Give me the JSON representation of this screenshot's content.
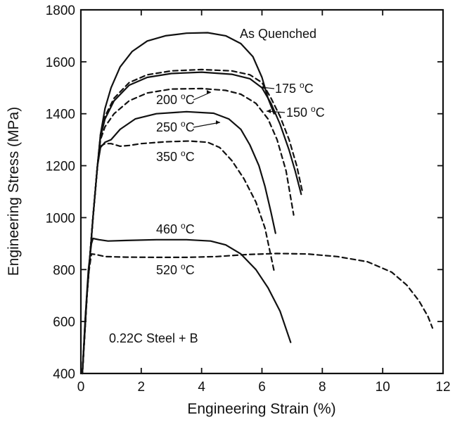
{
  "chart_data": {
    "type": "line",
    "xlabel": "Engineering Strain (%)",
    "ylabel": "Engineering Stress (MPa)",
    "xlim": [
      0,
      12
    ],
    "ylim": [
      400,
      1800
    ],
    "xticks": [
      0,
      2,
      4,
      6,
      8,
      10,
      12
    ],
    "yticks": [
      400,
      600,
      800,
      1000,
      1200,
      1400,
      1600,
      1800
    ],
    "grid": false,
    "legend": "none",
    "annotation": "0.22C Steel + B",
    "series": [
      {
        "name": "As Quenched",
        "label": "As Quenched",
        "dashed": false,
        "points": [
          [
            0.05,
            400
          ],
          [
            0.2,
            700
          ],
          [
            0.4,
            1000
          ],
          [
            0.55,
            1200
          ],
          [
            0.65,
            1320
          ],
          [
            0.8,
            1420
          ],
          [
            1.0,
            1500
          ],
          [
            1.3,
            1580
          ],
          [
            1.7,
            1640
          ],
          [
            2.2,
            1680
          ],
          [
            2.8,
            1700
          ],
          [
            3.5,
            1710
          ],
          [
            4.2,
            1712
          ],
          [
            4.8,
            1700
          ],
          [
            5.3,
            1670
          ],
          [
            5.7,
            1620
          ],
          [
            6.0,
            1540
          ],
          [
            6.2,
            1460
          ],
          [
            6.4,
            1400
          ]
        ]
      },
      {
        "name": "175 °C",
        "label": "175",
        "unit": "oC",
        "dashed": true,
        "points": [
          [
            0.05,
            400
          ],
          [
            0.2,
            700
          ],
          [
            0.4,
            1000
          ],
          [
            0.55,
            1200
          ],
          [
            0.65,
            1320
          ],
          [
            0.8,
            1390
          ],
          [
            1.1,
            1460
          ],
          [
            1.6,
            1520
          ],
          [
            2.2,
            1550
          ],
          [
            3.0,
            1565
          ],
          [
            4.0,
            1570
          ],
          [
            5.0,
            1565
          ],
          [
            5.6,
            1550
          ],
          [
            6.0,
            1520
          ],
          [
            6.3,
            1460
          ],
          [
            6.6,
            1390
          ],
          [
            6.9,
            1300
          ],
          [
            7.15,
            1200
          ],
          [
            7.35,
            1095
          ]
        ]
      },
      {
        "name": "150 °C",
        "label": "150",
        "unit": "oC",
        "dashed": false,
        "points": [
          [
            0.05,
            400
          ],
          [
            0.2,
            700
          ],
          [
            0.4,
            1000
          ],
          [
            0.55,
            1200
          ],
          [
            0.65,
            1310
          ],
          [
            0.8,
            1380
          ],
          [
            1.1,
            1450
          ],
          [
            1.6,
            1510
          ],
          [
            2.2,
            1540
          ],
          [
            3.0,
            1555
          ],
          [
            4.0,
            1560
          ],
          [
            5.0,
            1552
          ],
          [
            5.6,
            1535
          ],
          [
            6.0,
            1500
          ],
          [
            6.3,
            1440
          ],
          [
            6.6,
            1360
          ],
          [
            6.9,
            1260
          ],
          [
            7.1,
            1180
          ],
          [
            7.3,
            1090
          ]
        ]
      },
      {
        "name": "200 °C",
        "label": "200",
        "unit": "oC",
        "dashed": true,
        "points": [
          [
            0.05,
            400
          ],
          [
            0.2,
            700
          ],
          [
            0.4,
            1000
          ],
          [
            0.55,
            1200
          ],
          [
            0.65,
            1300
          ],
          [
            0.8,
            1350
          ],
          [
            1.1,
            1400
          ],
          [
            1.6,
            1450
          ],
          [
            2.2,
            1480
          ],
          [
            3.0,
            1495
          ],
          [
            4.0,
            1497
          ],
          [
            4.8,
            1490
          ],
          [
            5.3,
            1475
          ],
          [
            5.8,
            1440
          ],
          [
            6.2,
            1380
          ],
          [
            6.5,
            1300
          ],
          [
            6.8,
            1180
          ],
          [
            7.05,
            1010
          ]
        ]
      },
      {
        "name": "250 °C",
        "label": "250",
        "unit": "oC",
        "dashed": false,
        "points": [
          [
            0.05,
            400
          ],
          [
            0.2,
            700
          ],
          [
            0.4,
            1000
          ],
          [
            0.55,
            1200
          ],
          [
            0.65,
            1270
          ],
          [
            0.8,
            1290
          ],
          [
            1.0,
            1300
          ],
          [
            1.3,
            1340
          ],
          [
            1.8,
            1380
          ],
          [
            2.5,
            1400
          ],
          [
            3.5,
            1408
          ],
          [
            4.4,
            1402
          ],
          [
            4.9,
            1380
          ],
          [
            5.3,
            1340
          ],
          [
            5.6,
            1280
          ],
          [
            5.9,
            1200
          ],
          [
            6.1,
            1120
          ],
          [
            6.3,
            1020
          ],
          [
            6.45,
            940
          ]
        ]
      },
      {
        "name": "350 °C",
        "label": "350",
        "unit": "oC",
        "dashed": true,
        "points": [
          [
            0.05,
            400
          ],
          [
            0.2,
            700
          ],
          [
            0.4,
            1000
          ],
          [
            0.55,
            1200
          ],
          [
            0.65,
            1275
          ],
          [
            0.8,
            1285
          ],
          [
            1.0,
            1285
          ],
          [
            1.3,
            1275
          ],
          [
            1.6,
            1278
          ],
          [
            2.0,
            1285
          ],
          [
            2.8,
            1292
          ],
          [
            3.6,
            1295
          ],
          [
            4.2,
            1290
          ],
          [
            4.6,
            1270
          ],
          [
            5.0,
            1220
          ],
          [
            5.4,
            1150
          ],
          [
            5.8,
            1060
          ],
          [
            6.1,
            960
          ],
          [
            6.3,
            850
          ],
          [
            6.4,
            795
          ]
        ]
      },
      {
        "name": "460 °C",
        "label": "460",
        "unit": "oC",
        "dashed": false,
        "points": [
          [
            0.05,
            400
          ],
          [
            0.15,
            620
          ],
          [
            0.25,
            800
          ],
          [
            0.35,
            900
          ],
          [
            0.4,
            920
          ],
          [
            0.6,
            915
          ],
          [
            0.9,
            910
          ],
          [
            1.5,
            912
          ],
          [
            2.5,
            915
          ],
          [
            3.5,
            915
          ],
          [
            4.3,
            910
          ],
          [
            4.8,
            895
          ],
          [
            5.3,
            860
          ],
          [
            5.8,
            800
          ],
          [
            6.2,
            730
          ],
          [
            6.6,
            640
          ],
          [
            6.95,
            520
          ]
        ]
      },
      {
        "name": "520 °C",
        "label": "520",
        "unit": "oC",
        "dashed": true,
        "points": [
          [
            0.05,
            400
          ],
          [
            0.15,
            620
          ],
          [
            0.25,
            780
          ],
          [
            0.35,
            860
          ],
          [
            0.5,
            858
          ],
          [
            0.8,
            850
          ],
          [
            1.5,
            848
          ],
          [
            2.5,
            847
          ],
          [
            3.5,
            847
          ],
          [
            4.5,
            850
          ],
          [
            5.5,
            858
          ],
          [
            6.5,
            862
          ],
          [
            7.5,
            860
          ],
          [
            8.5,
            850
          ],
          [
            9.5,
            830
          ],
          [
            10.3,
            790
          ],
          [
            10.8,
            740
          ],
          [
            11.2,
            680
          ],
          [
            11.5,
            620
          ],
          [
            11.65,
            575
          ]
        ]
      }
    ]
  }
}
